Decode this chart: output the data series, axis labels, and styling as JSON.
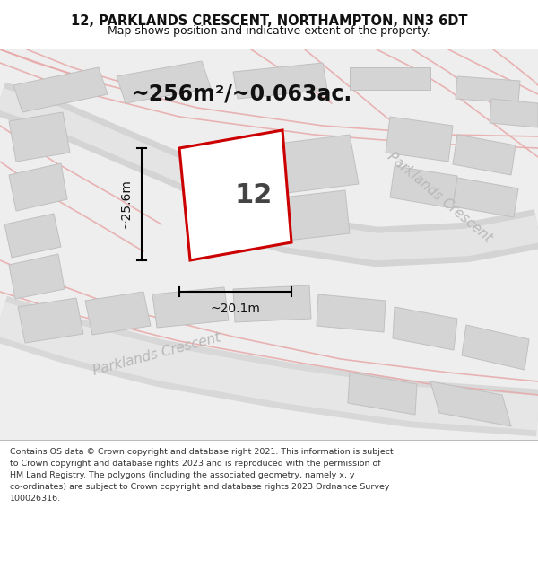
{
  "title_line1": "12, PARKLANDS CRESCENT, NORTHAMPTON, NN3 6DT",
  "title_line2": "Map shows position and indicative extent of the property.",
  "area_text": "~256m²/~0.063ac.",
  "property_number": "12",
  "dim_height": "~25.6m",
  "dim_width": "~20.1m",
  "street_label1": "Parklands Crescent",
  "street_label2": "Parklands Crescent",
  "footnote": "Contains OS data © Crown copyright and database right 2021. This information is subject to Crown copyright and database rights 2023 and is reproduced with the permission of HM Land Registry. The polygons (including the associated geometry, namely x, y co-ordinates) are subject to Crown copyright and database rights 2023 Ordnance Survey 100026316.",
  "title_color": "#111111",
  "footnote_color": "#333333"
}
